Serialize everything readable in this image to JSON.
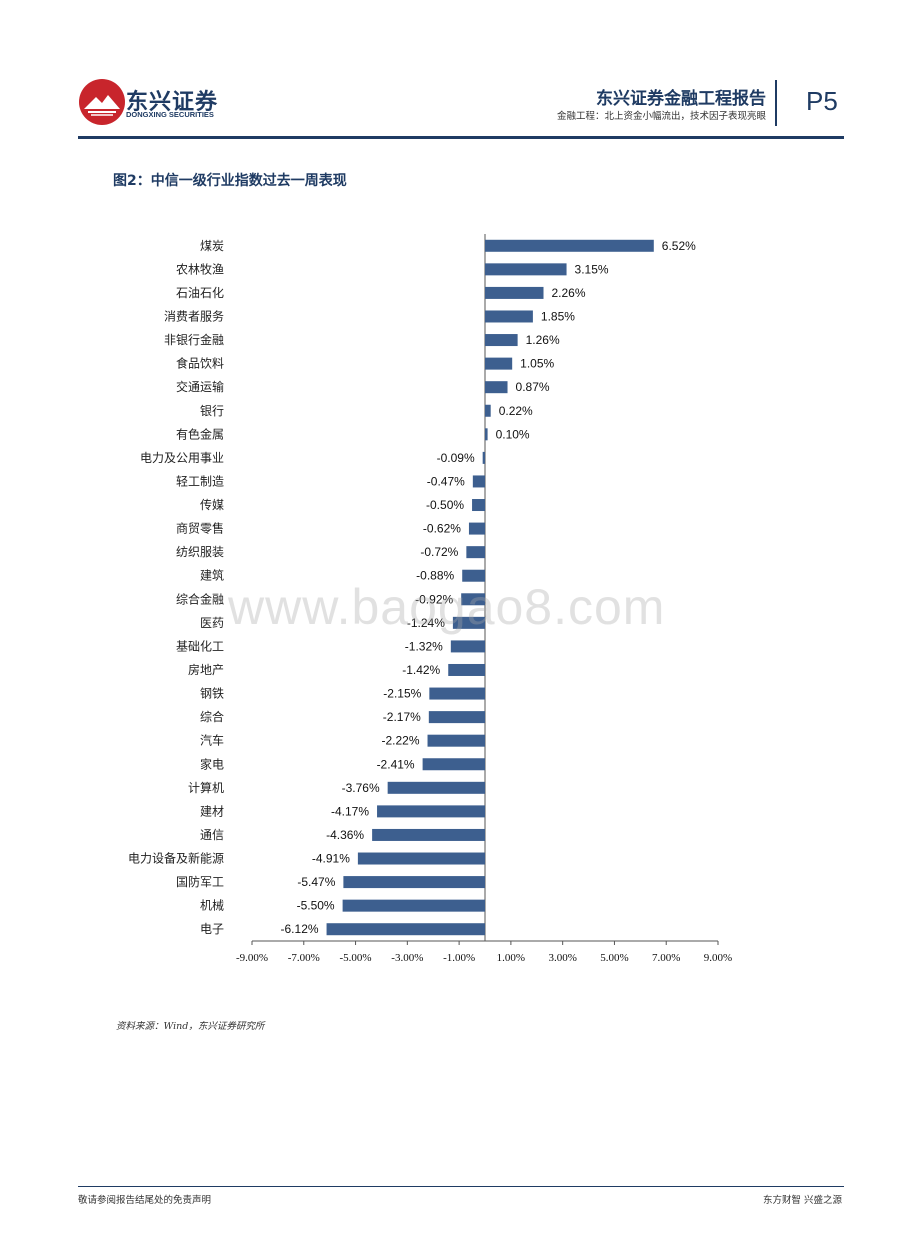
{
  "header": {
    "brand_cn": "东兴证券",
    "brand_en": "DONGXING SECURITIES",
    "report_title": "东兴证券金融工程报告",
    "report_subtitle": "金融工程：北上资金小幅流出，技术因子表现亮眼",
    "page_number": "P5"
  },
  "figure": {
    "title": "图2：中信一级行业指数过去一周表现",
    "source": "资料来源：Wind，东兴证券研究所"
  },
  "watermark": "www.baogao8.com",
  "footer": {
    "left": "敬请参阅报告结尾处的免责声明",
    "right": "东方财智 兴盛之源"
  },
  "colors": {
    "brand": "#1f3b63",
    "bar": "#3d5f8f",
    "logo_red": "#c8252c"
  },
  "chart_data": {
    "type": "bar",
    "orientation": "horizontal",
    "categories": [
      "煤炭",
      "农林牧渔",
      "石油石化",
      "消费者服务",
      "非银行金融",
      "食品饮料",
      "交通运输",
      "银行",
      "有色金属",
      "电力及公用事业",
      "轻工制造",
      "传媒",
      "商贸零售",
      "纺织服装",
      "建筑",
      "综合金融",
      "医药",
      "基础化工",
      "房地产",
      "钢铁",
      "综合",
      "汽车",
      "家电",
      "计算机",
      "建材",
      "通信",
      "电力设备及新能源",
      "国防军工",
      "机械",
      "电子"
    ],
    "values": [
      6.52,
      3.15,
      2.26,
      1.85,
      1.26,
      1.05,
      0.87,
      0.22,
      0.1,
      -0.09,
      -0.47,
      -0.5,
      -0.62,
      -0.72,
      -0.88,
      -0.92,
      -1.24,
      -1.32,
      -1.42,
      -2.15,
      -2.17,
      -2.22,
      -2.41,
      -3.76,
      -4.17,
      -4.36,
      -4.91,
      -5.47,
      -5.5,
      -6.12
    ],
    "value_labels": [
      "6.52%",
      "3.15%",
      "2.26%",
      "1.85%",
      "1.26%",
      "1.05%",
      "0.87%",
      "0.22%",
      "0.10%",
      "-0.09%",
      "-0.47%",
      "-0.50%",
      "-0.62%",
      "-0.72%",
      "-0.88%",
      "-0.92%",
      "-1.24%",
      "-1.32%",
      "-1.42%",
      "-2.15%",
      "-2.17%",
      "-2.22%",
      "-2.41%",
      "-3.76%",
      "-4.17%",
      "-4.36%",
      "-4.91%",
      "-5.47%",
      "-5.50%",
      "-6.12%"
    ],
    "xticks": [
      "-9.00%",
      "-7.00%",
      "-5.00%",
      "-3.00%",
      "-1.00%",
      "1.00%",
      "3.00%",
      "5.00%",
      "7.00%",
      "9.00%"
    ],
    "xlim": [
      -9,
      9
    ],
    "grid": false,
    "legend": "none"
  }
}
